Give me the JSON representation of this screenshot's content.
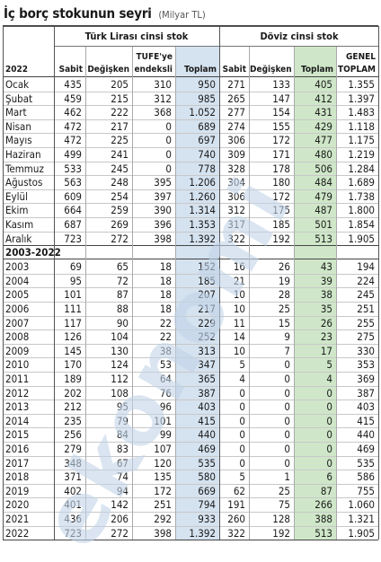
{
  "title": "İç borç stokunun seyri",
  "unit": "(Milyar TL)",
  "groups": {
    "try": "Türk Lirası cinsi stok",
    "fx": "Döviz cinsi stok"
  },
  "headers": {
    "year": "2022",
    "sabit": "Sabit",
    "degisken": "Değişken",
    "tufe_1": "TÜFE'ye",
    "tufe_2": "endeksli",
    "toplam": "Toplam",
    "fx_sabit": "Sabit",
    "fx_degisken": "Değişken",
    "fx_toplam": "Toplam",
    "genel_1": "GENEL",
    "genel_2": "TOPLAM"
  },
  "section2": "2003-2022",
  "watermark": "ekonomi",
  "colors": {
    "blue_col": "#d5e2ef",
    "green_col": "#cfe7c8",
    "watermark": "#c2d4e8"
  },
  "monthly": [
    [
      "Ocak",
      "435",
      "205",
      "310",
      "950",
      "271",
      "133",
      "405",
      "1.355"
    ],
    [
      "Şubat",
      "459",
      "215",
      "312",
      "985",
      "265",
      "147",
      "412",
      "1.397"
    ],
    [
      "Mart",
      "462",
      "222",
      "368",
      "1.052",
      "277",
      "154",
      "431",
      "1.483"
    ],
    [
      "Nisan",
      "472",
      "217",
      "0",
      "689",
      "274",
      "155",
      "429",
      "1.118"
    ],
    [
      "Mayıs",
      "472",
      "225",
      "0",
      "697",
      "306",
      "172",
      "477",
      "1.175"
    ],
    [
      "Haziran",
      "499",
      "241",
      "0",
      "740",
      "309",
      "171",
      "480",
      "1.219"
    ],
    [
      "Temmuz",
      "533",
      "245",
      "0",
      "778",
      "328",
      "178",
      "506",
      "1.284"
    ],
    [
      "Ağustos",
      "563",
      "248",
      "395",
      "1.206",
      "304",
      "180",
      "484",
      "1.689"
    ],
    [
      "Eylül",
      "609",
      "254",
      "397",
      "1.260",
      "306",
      "172",
      "479",
      "1.738"
    ],
    [
      "Ekim",
      "664",
      "259",
      "390",
      "1.314",
      "312",
      "175",
      "487",
      "1.800"
    ],
    [
      "Kasım",
      "687",
      "269",
      "396",
      "1.353",
      "317",
      "185",
      "501",
      "1.854"
    ],
    [
      "Aralık",
      "723",
      "272",
      "398",
      "1.392",
      "322",
      "192",
      "513",
      "1.905"
    ]
  ],
  "yearly": [
    [
      "2003",
      "69",
      "65",
      "18",
      "152",
      "16",
      "26",
      "43",
      "194"
    ],
    [
      "2004",
      "95",
      "72",
      "18",
      "185",
      "21",
      "19",
      "39",
      "224"
    ],
    [
      "2005",
      "101",
      "87",
      "18",
      "207",
      "10",
      "28",
      "38",
      "245"
    ],
    [
      "2006",
      "111",
      "88",
      "18",
      "217",
      "10",
      "25",
      "35",
      "251"
    ],
    [
      "2007",
      "117",
      "90",
      "22",
      "229",
      "11",
      "15",
      "26",
      "255"
    ],
    [
      "2008",
      "126",
      "104",
      "22",
      "252",
      "14",
      "9",
      "23",
      "275"
    ],
    [
      "2009",
      "145",
      "130",
      "38",
      "313",
      "10",
      "7",
      "17",
      "330"
    ],
    [
      "2010",
      "170",
      "124",
      "53",
      "347",
      "5",
      "0",
      "5",
      "353"
    ],
    [
      "2011",
      "189",
      "112",
      "64",
      "365",
      "4",
      "0",
      "4",
      "369"
    ],
    [
      "2012",
      "202",
      "108",
      "76",
      "387",
      "0",
      "0",
      "0",
      "387"
    ],
    [
      "2013",
      "212",
      "95",
      "96",
      "403",
      "0",
      "0",
      "0",
      "403"
    ],
    [
      "2014",
      "235",
      "79",
      "101",
      "415",
      "0",
      "0",
      "0",
      "415"
    ],
    [
      "2015",
      "256",
      "84",
      "99",
      "440",
      "0",
      "0",
      "0",
      "440"
    ],
    [
      "2016",
      "279",
      "83",
      "107",
      "469",
      "0",
      "0",
      "0",
      "469"
    ],
    [
      "2017",
      "348",
      "67",
      "120",
      "535",
      "0",
      "0",
      "0",
      "535"
    ],
    [
      "2018",
      "371",
      "74",
      "135",
      "580",
      "5",
      "1",
      "6",
      "586"
    ],
    [
      "2019",
      "402",
      "94",
      "172",
      "669",
      "62",
      "25",
      "87",
      "755"
    ],
    [
      "2020",
      "401",
      "142",
      "251",
      "794",
      "191",
      "75",
      "266",
      "1.060"
    ],
    [
      "2021",
      "436",
      "206",
      "292",
      "933",
      "260",
      "128",
      "388",
      "1.321"
    ],
    [
      "2022",
      "723",
      "272",
      "398",
      "1.392",
      "322",
      "192",
      "513",
      "1.905"
    ]
  ]
}
